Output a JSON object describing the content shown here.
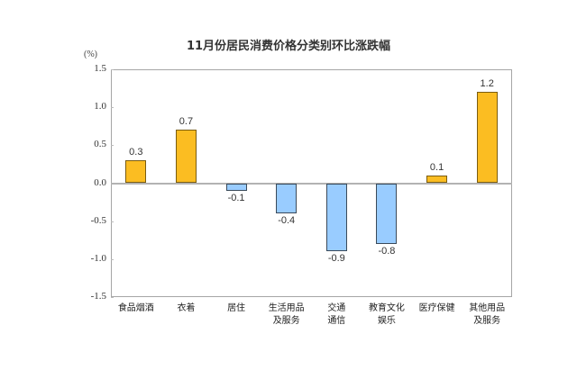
{
  "chart_data": {
    "type": "bar",
    "title": "11月份居民消费价格分类别环比涨跌幅",
    "xlabel": "",
    "ylabel": "(%)",
    "ylim": [
      -1.5,
      1.5
    ],
    "yticks": [
      "1.5",
      "1.0",
      "0.5",
      "0.0",
      "-0.5",
      "-1.0",
      "-1.5"
    ],
    "grid": false,
    "legend": null,
    "categories": [
      "食品烟酒",
      "衣着",
      "居住",
      "生活用品\n及服务",
      "交通\n通信",
      "教育文化\n娱乐",
      "医疗保健",
      "其他用品\n及服务"
    ],
    "values": [
      0.3,
      0.7,
      -0.1,
      -0.4,
      -0.9,
      -0.8,
      0.1,
      1.2
    ],
    "value_labels": [
      "0.3",
      "0.7",
      "-0.1",
      "-0.4",
      "-0.9",
      "-0.8",
      "0.1",
      "1.2"
    ],
    "colors": {
      "positive": "#fbbd22",
      "negative": "#99ccff",
      "axis": "#a6a6a6"
    }
  }
}
